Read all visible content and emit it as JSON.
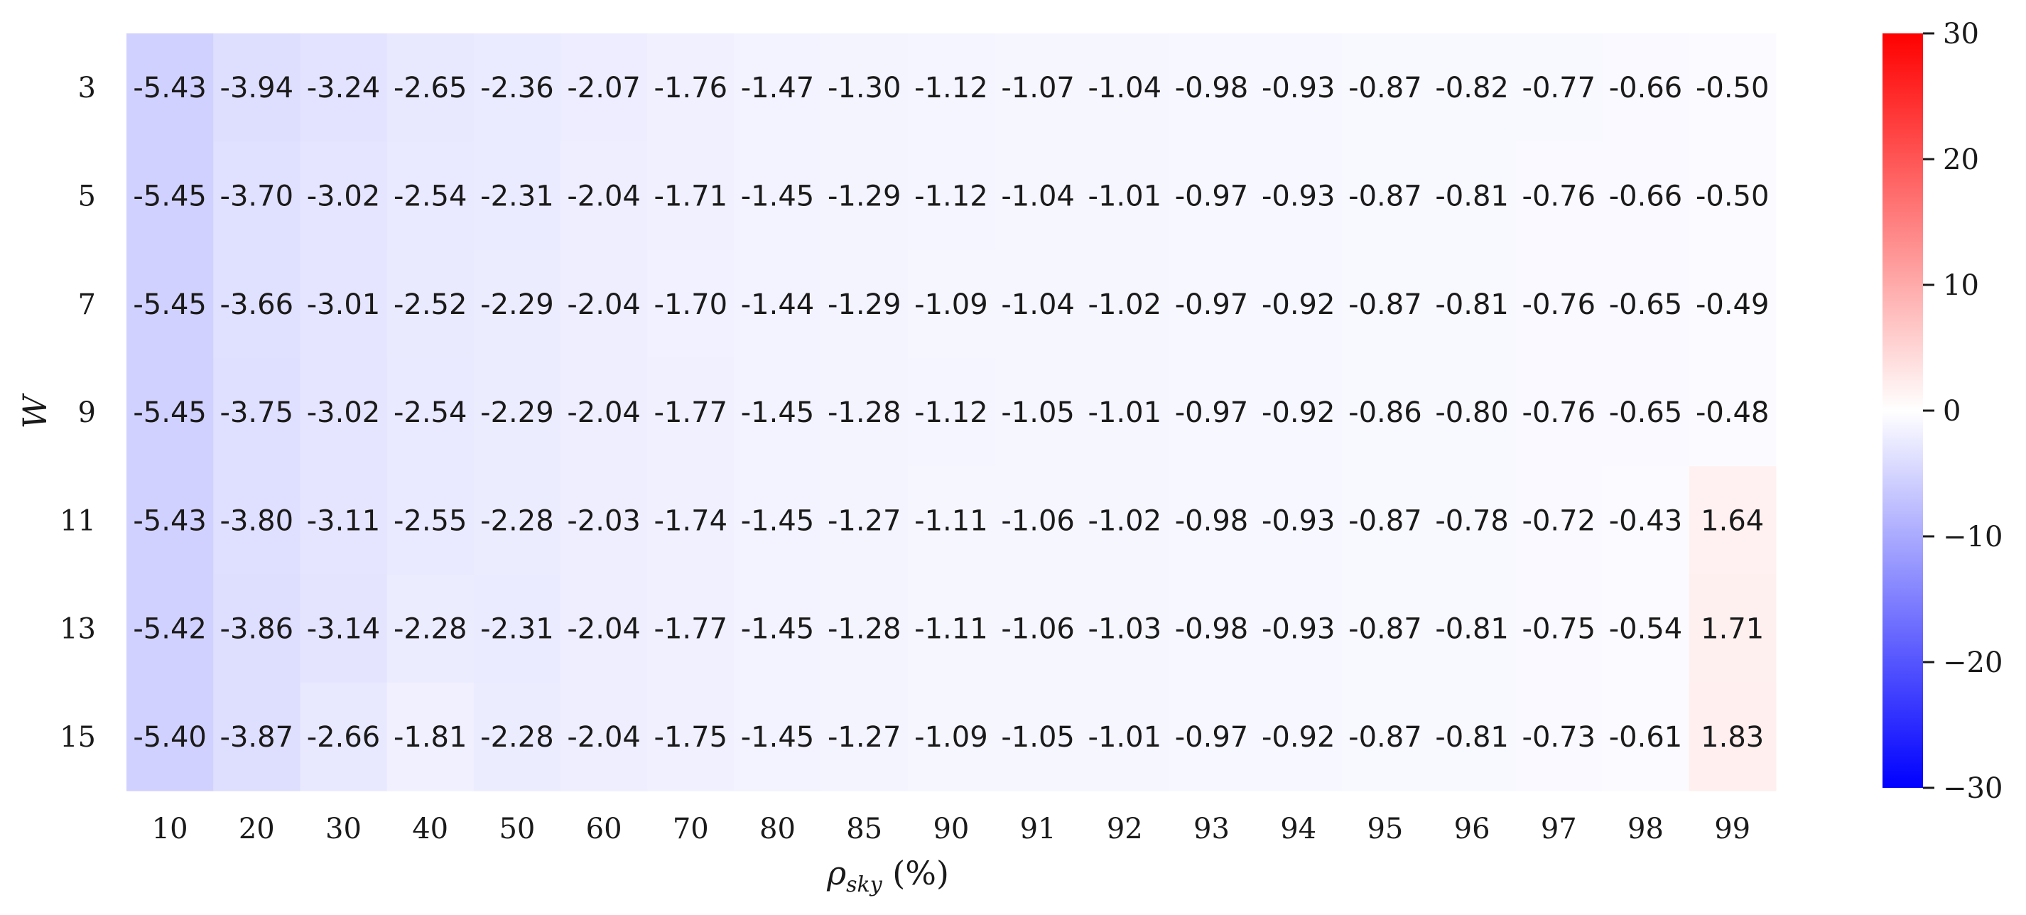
{
  "chart_data": {
    "type": "heatmap",
    "title": "",
    "xlabel": "ρ_sky (%)",
    "ylabel": "W",
    "x_categories": [
      "10",
      "20",
      "30",
      "40",
      "50",
      "60",
      "70",
      "80",
      "85",
      "90",
      "91",
      "92",
      "93",
      "94",
      "95",
      "96",
      "97",
      "98",
      "99"
    ],
    "y_categories": [
      "3",
      "5",
      "7",
      "9",
      "11",
      "13",
      "15"
    ],
    "values": [
      [
        -5.43,
        -3.94,
        -3.24,
        -2.65,
        -2.36,
        -2.07,
        -1.76,
        -1.47,
        -1.3,
        -1.12,
        -1.07,
        -1.04,
        -0.98,
        -0.93,
        -0.87,
        -0.82,
        -0.77,
        -0.66,
        -0.5
      ],
      [
        -5.45,
        -3.7,
        -3.02,
        -2.54,
        -2.31,
        -2.04,
        -1.71,
        -1.45,
        -1.29,
        -1.12,
        -1.04,
        -1.01,
        -0.97,
        -0.93,
        -0.87,
        -0.81,
        -0.76,
        -0.66,
        -0.5
      ],
      [
        -5.45,
        -3.66,
        -3.01,
        -2.52,
        -2.29,
        -2.04,
        -1.7,
        -1.44,
        -1.29,
        -1.09,
        -1.04,
        -1.02,
        -0.97,
        -0.92,
        -0.87,
        -0.81,
        -0.76,
        -0.65,
        -0.49
      ],
      [
        -5.45,
        -3.75,
        -3.02,
        -2.54,
        -2.29,
        -2.04,
        -1.77,
        -1.45,
        -1.28,
        -1.12,
        -1.05,
        -1.01,
        -0.97,
        -0.92,
        -0.86,
        -0.8,
        -0.76,
        -0.65,
        -0.48
      ],
      [
        -5.43,
        -3.8,
        -3.11,
        -2.55,
        -2.28,
        -2.03,
        -1.74,
        -1.45,
        -1.27,
        -1.11,
        -1.06,
        -1.02,
        -0.98,
        -0.93,
        -0.87,
        -0.78,
        -0.72,
        -0.43,
        1.64
      ],
      [
        -5.42,
        -3.86,
        -3.14,
        -2.28,
        -2.31,
        -2.04,
        -1.77,
        -1.45,
        -1.28,
        -1.11,
        -1.06,
        -1.03,
        -0.98,
        -0.93,
        -0.87,
        -0.81,
        -0.75,
        -0.54,
        1.71
      ],
      [
        -5.4,
        -3.87,
        -2.66,
        -1.81,
        -2.28,
        -2.04,
        -1.75,
        -1.45,
        -1.27,
        -1.09,
        -1.05,
        -1.01,
        -0.97,
        -0.92,
        -0.87,
        -0.81,
        -0.73,
        -0.61,
        1.83
      ]
    ],
    "colorbar": {
      "colormap": "bwr",
      "vmin": -30,
      "vmax": 30,
      "ticks": [
        30,
        20,
        10,
        0,
        -10,
        -20,
        -30
      ],
      "tick_labels": [
        "30",
        "20",
        "10",
        "0",
        "−10",
        "−20",
        "−30"
      ],
      "min_color": "#0000ff",
      "mid_color": "#ffffff",
      "max_color": "#ff0000"
    },
    "grid": false,
    "legend": "colorbar-right"
  }
}
